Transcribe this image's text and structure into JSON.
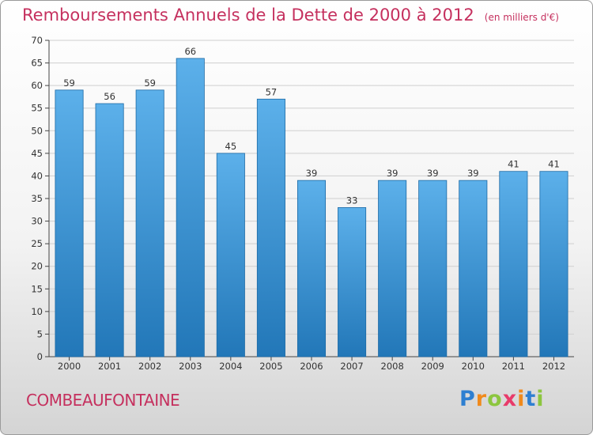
{
  "title": "Remboursements Annuels de la Dette de 2000 à 2012",
  "unit_note": "(en milliers d'€)",
  "commune": "COMBEAUFONTAINE",
  "logo": {
    "letters": [
      "P",
      "r",
      "o",
      "x",
      "i",
      "t",
      "i"
    ],
    "colors": [
      "#2e7fd1",
      "#f08a1c",
      "#8cc63f",
      "#e83b6a",
      "#f08a1c",
      "#2e7fd1",
      "#8cc63f"
    ]
  },
  "colors": {
    "accent": "#c5305e",
    "bar_top": "#5cb0ea",
    "bar_bottom": "#2277b8",
    "grid": "#cfcfcf"
  },
  "chart_data": {
    "type": "bar",
    "title": "Remboursements Annuels de la Dette de 2000 à 2012",
    "unit": "(en milliers d'€)",
    "categories": [
      "2000",
      "2001",
      "2002",
      "2003",
      "2004",
      "2005",
      "2006",
      "2007",
      "2008",
      "2009",
      "2010",
      "2011",
      "2012"
    ],
    "values": [
      59,
      56,
      59,
      66,
      45,
      57,
      39,
      33,
      39,
      39,
      39,
      41,
      41
    ],
    "ylim": [
      0,
      70
    ],
    "yticks": [
      0,
      5,
      10,
      15,
      20,
      25,
      30,
      35,
      40,
      45,
      50,
      55,
      60,
      65,
      70
    ],
    "grid": true,
    "data_labels": true
  }
}
